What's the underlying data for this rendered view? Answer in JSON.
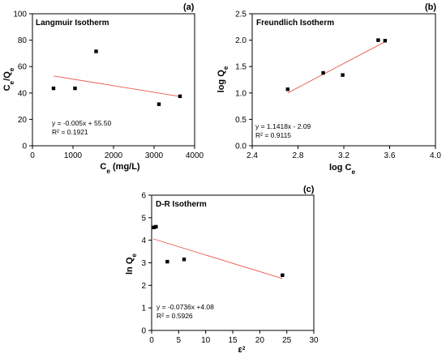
{
  "chart_data": [
    {
      "type": "scatter",
      "panel_letter": "(a)",
      "title": "Langmuir Isotherm",
      "xlabel": {
        "main": "C",
        "sub": "e",
        "tail": " (mg/L)"
      },
      "ylabel": {
        "parts": [
          [
            "C",
            ""
          ],
          [
            "e",
            "sub"
          ],
          [
            "/Q",
            ""
          ],
          [
            "e",
            "sub"
          ]
        ]
      },
      "xlim": [
        0,
        4000
      ],
      "ylim": [
        0,
        100
      ],
      "xticks": [
        0,
        1000,
        2000,
        3000,
        4000
      ],
      "yticks": [
        0,
        20,
        40,
        60,
        80,
        100
      ],
      "x_tick_labels": [
        "0",
        "1000",
        "2000",
        "3000",
        "4000"
      ],
      "y_tick_labels": [
        "0",
        "20",
        "40",
        "60",
        "80",
        "100"
      ],
      "points": [
        {
          "x": 520,
          "y": 43.5
        },
        {
          "x": 1050,
          "y": 43.5
        },
        {
          "x": 1570,
          "y": 71.5
        },
        {
          "x": 3120,
          "y": 31.5
        },
        {
          "x": 3640,
          "y": 37.5
        }
      ],
      "fit_line": {
        "x": [
          520,
          3640
        ],
        "y": [
          52.9,
          37.3
        ],
        "color": "#e8584a"
      },
      "equation": "y = -0.005x + 55.50",
      "r_squared": "R² = 0.1921",
      "grid": false,
      "legend": "none"
    },
    {
      "type": "scatter",
      "panel_letter": "(b)",
      "title": "Freundlich Isotherm",
      "xlabel": {
        "parts": [
          [
            "log C",
            ""
          ],
          [
            "e",
            "sub"
          ]
        ]
      },
      "ylabel": {
        "parts": [
          [
            "log Q",
            ""
          ],
          [
            "e",
            "sub"
          ]
        ]
      },
      "xlim": [
        2.4,
        4.0
      ],
      "ylim": [
        0.0,
        2.5
      ],
      "xticks": [
        2.4,
        2.8,
        3.2,
        3.6,
        4.0
      ],
      "yticks": [
        0.0,
        0.5,
        1.0,
        1.5,
        2.0,
        2.5
      ],
      "x_tick_labels": [
        "2.4",
        "2.8",
        "3.2",
        "3.6",
        "4.0"
      ],
      "y_tick_labels": [
        "0.0",
        "0.5",
        "1.0",
        "1.5",
        "2.0",
        "2.5"
      ],
      "points": [
        {
          "x": 2.71,
          "y": 1.07
        },
        {
          "x": 3.02,
          "y": 1.38
        },
        {
          "x": 3.19,
          "y": 1.34
        },
        {
          "x": 3.5,
          "y": 2.0
        },
        {
          "x": 3.56,
          "y": 1.99
        }
      ],
      "fit_line": {
        "x": [
          2.71,
          3.56
        ],
        "y": [
          1.0,
          1.97
        ],
        "color": "#e8584a"
      },
      "equation": "y = 1.1418x - 2.09",
      "r_squared": "R² = 0.9115",
      "grid": false,
      "legend": "none"
    },
    {
      "type": "scatter",
      "panel_letter": "(c)",
      "title": "D-R Isotherm",
      "xlabel": {
        "parts": [
          [
            "ε",
            ""
          ],
          [
            "2",
            "sup"
          ]
        ]
      },
      "ylabel": {
        "parts": [
          [
            "ln Q",
            ""
          ],
          [
            "e",
            "sub"
          ]
        ]
      },
      "xlim": [
        0,
        30
      ],
      "ylim": [
        0,
        6
      ],
      "xticks": [
        0,
        5,
        10,
        15,
        20,
        25,
        30
      ],
      "yticks": [
        0,
        1,
        2,
        3,
        4,
        5,
        6
      ],
      "x_tick_labels": [
        "0",
        "5",
        "10",
        "15",
        "20",
        "25",
        "30"
      ],
      "y_tick_labels": [
        "0",
        "1",
        "2",
        "3",
        "4",
        "5",
        "6"
      ],
      "points": [
        {
          "x": 0.4,
          "y": 4.57
        },
        {
          "x": 0.8,
          "y": 4.6
        },
        {
          "x": 2.9,
          "y": 3.05
        },
        {
          "x": 6.0,
          "y": 3.15
        },
        {
          "x": 24.2,
          "y": 2.45
        }
      ],
      "fit_line": {
        "x": [
          0.3,
          24.2
        ],
        "y": [
          4.06,
          2.3
        ],
        "color": "#e8584a"
      },
      "equation": "y = -0.0736x +4.08",
      "r_squared": "R² = 0.5926",
      "grid": false,
      "legend": "none"
    }
  ]
}
